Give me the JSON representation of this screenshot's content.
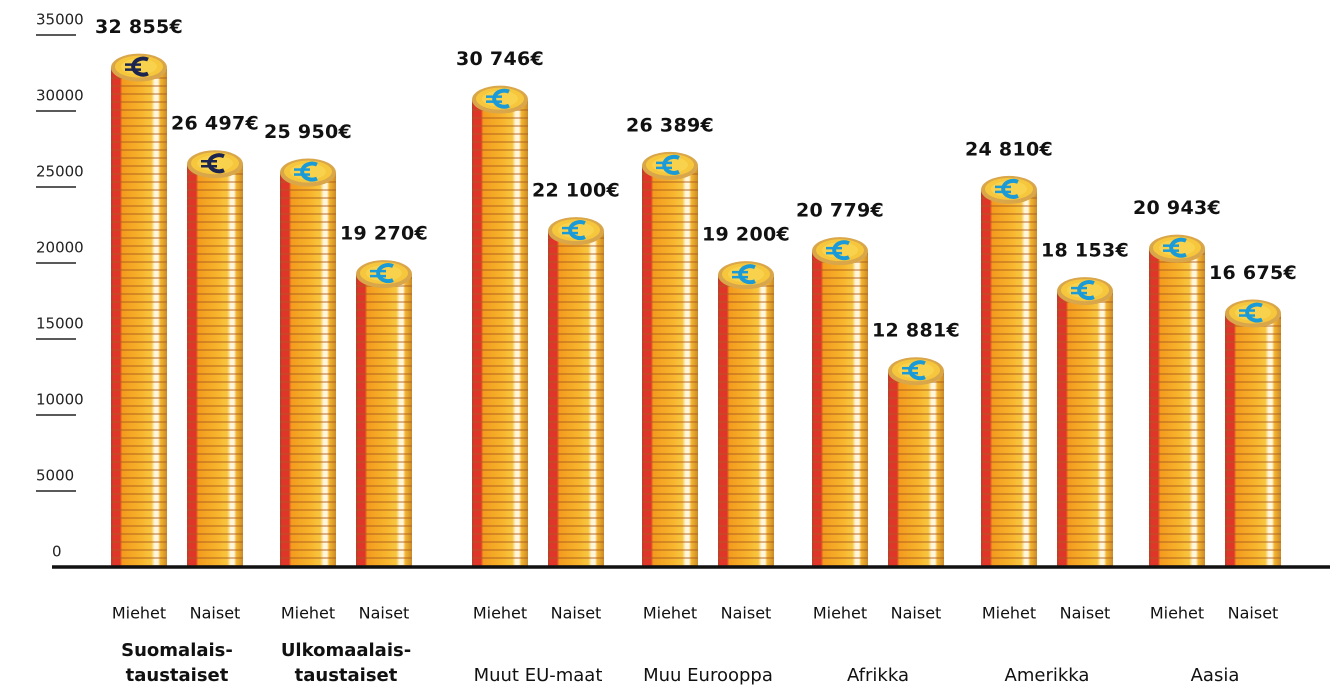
{
  "chart_data": {
    "type": "bar",
    "categories": [
      [
        "Suomalais-",
        "taustaiset"
      ],
      [
        "Ulkomaalais-",
        "taustaiset"
      ],
      [
        "Muut EU-maat"
      ],
      [
        "Muu Eurooppa"
      ],
      [
        "Afrikka"
      ],
      [
        "Amerikka"
      ],
      [
        "Aasia"
      ]
    ],
    "series": [
      {
        "name": "Miehet",
        "values": [
          32855,
          25950,
          30746,
          26389,
          20779,
          24810,
          20943
        ],
        "value_labels": [
          "32 855€",
          "25 950€",
          "30 746€",
          "26 389€",
          "20 779€",
          "24 810€",
          "20 943€"
        ]
      },
      {
        "name": "Naiset",
        "values": [
          26497,
          19270,
          22100,
          19200,
          12881,
          18153,
          16675
        ],
        "value_labels": [
          "26 497€",
          "19 270€",
          "22 100€",
          "19 200€",
          "12 881€",
          "18 153€",
          "16 675€"
        ]
      }
    ],
    "icon_colors": [
      "#1c2450",
      "#1b9ad8",
      "#1b9ad8",
      "#1b9ad8",
      "#1b9ad8",
      "#1b9ad8",
      "#1b9ad8"
    ],
    "ylim": [
      0,
      35000
    ],
    "yticks": [
      0,
      5000,
      10000,
      15000,
      20000,
      25000,
      30000,
      35000
    ]
  }
}
